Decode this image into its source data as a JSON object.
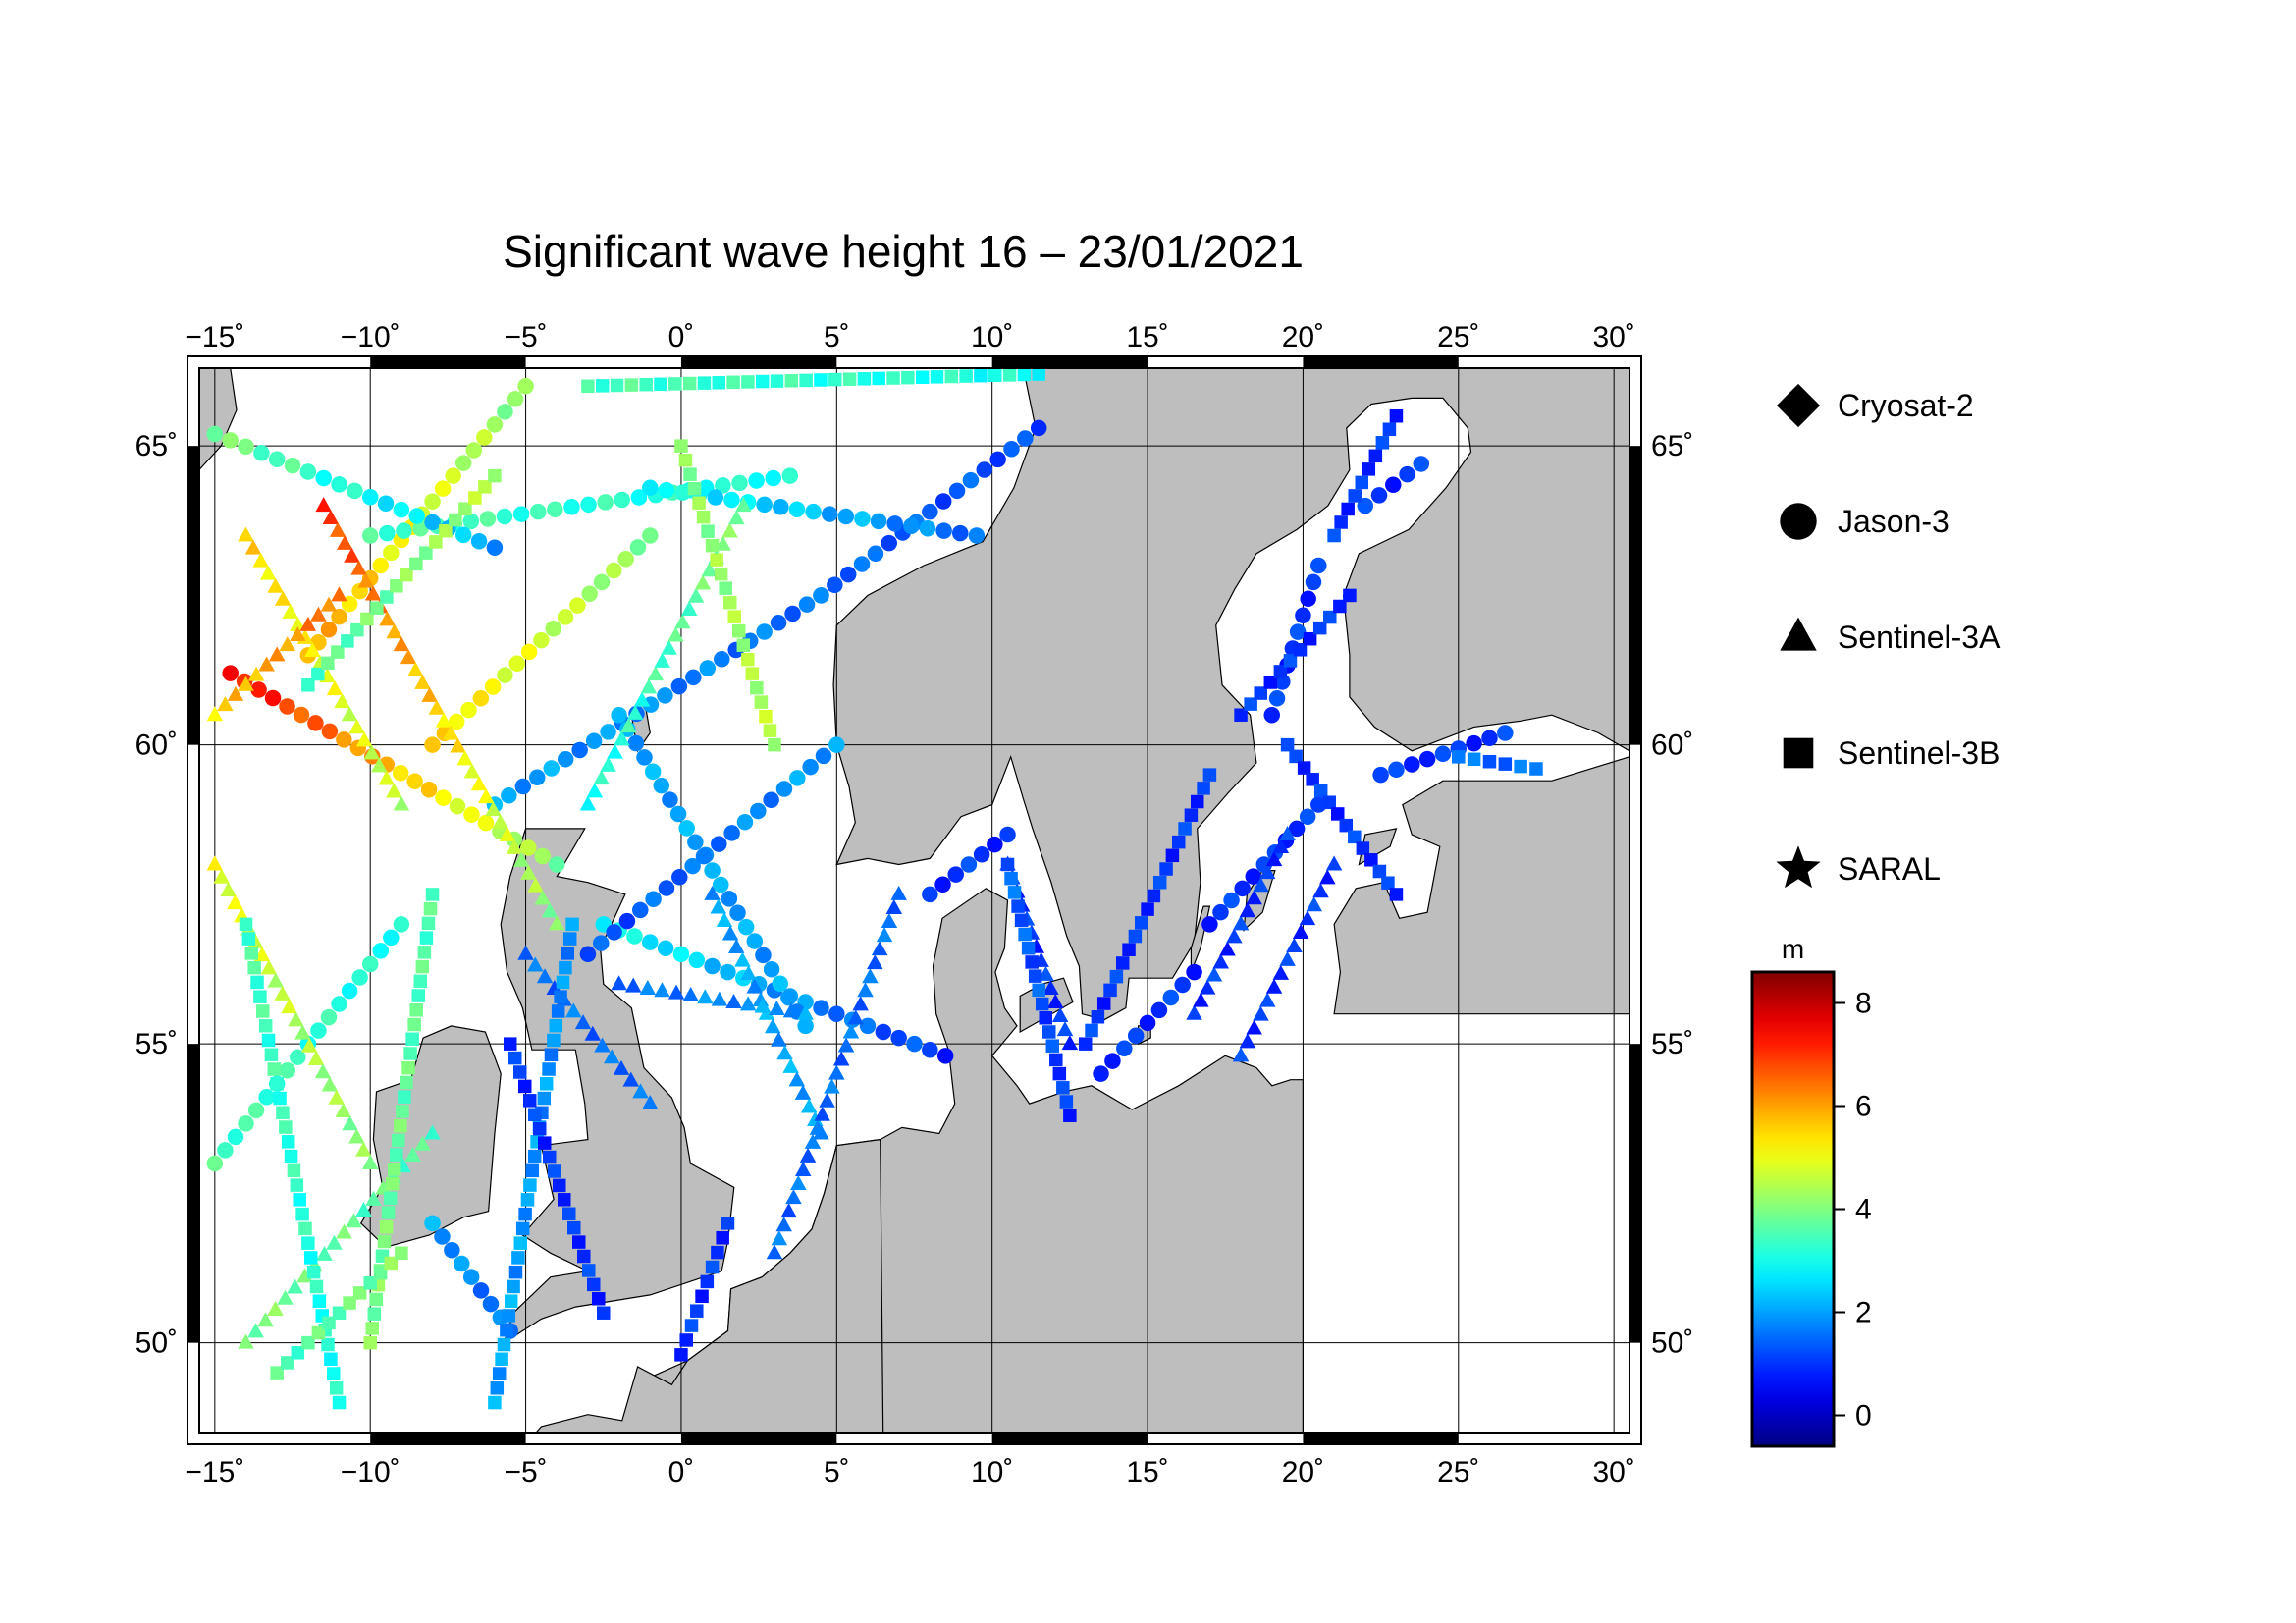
{
  "title": "Significant wave height 16 – 23/01/2021",
  "map": {
    "lon_range": [
      -15.5,
      30.5
    ],
    "lat_range": [
      48.5,
      66.3
    ],
    "lon_ticks": [
      -15,
      -10,
      -5,
      0,
      5,
      10,
      15,
      20,
      25,
      30
    ],
    "lat_ticks": [
      50,
      55,
      60,
      65
    ],
    "lon_tick_labels": [
      "−15˚",
      "−10˚",
      "−5˚",
      "0˚",
      "5˚",
      "10˚",
      "15˚",
      "20˚",
      "25˚",
      "30˚"
    ],
    "lat_tick_labels": [
      "50˚",
      "55˚",
      "60˚",
      "65˚"
    ],
    "grid": true,
    "land_color": "#bebebe",
    "sea_color": "#ffffff"
  },
  "legend": {
    "placement": "right",
    "items": [
      {
        "name": "Cryosat-2",
        "marker": "diamond"
      },
      {
        "name": "Jason-3",
        "marker": "circle"
      },
      {
        "name": "Sentinel-3A",
        "marker": "triangle"
      },
      {
        "name": "Sentinel-3B",
        "marker": "square"
      },
      {
        "name": "SARAL",
        "marker": "star"
      }
    ]
  },
  "colorbar": {
    "unit": "m",
    "min": -0.6,
    "max": 8.6,
    "ticks": [
      0,
      2,
      4,
      6,
      8
    ],
    "tick_labels": [
      "0",
      "2",
      "4",
      "6",
      "8"
    ],
    "colormap": "jet"
  },
  "chart_data": {
    "type": "scatter",
    "variable": "significant wave height (m)",
    "series": [
      {
        "name": "Jason-3",
        "marker": "circle",
        "tracks": [
          {
            "start": [
              -5.5,
              50.2
            ],
            "end": [
              -8.0,
              52.0
            ],
            "hs_start": 1.5,
            "hs_end": 2.0
          },
          {
            "start": [
              -6.0,
              59.0
            ],
            "end": [
              4.5,
              62.5
            ],
            "hs_start": 2.0,
            "hs_end": 1.5
          },
          {
            "start": [
              4.5,
              62.5
            ],
            "end": [
              11.5,
              65.3
            ],
            "hs_start": 1.5,
            "hs_end": 1.2
          },
          {
            "start": [
              -14.5,
              61.2
            ],
            "end": [
              -4.0,
              58.0
            ],
            "hs_start": 7.5,
            "hs_end": 4.0
          },
          {
            "start": [
              -12.0,
              61.5
            ],
            "end": [
              -5.0,
              66.0
            ],
            "hs_start": 6.0,
            "hs_end": 4.0
          },
          {
            "start": [
              -2.5,
              57.0
            ],
            "end": [
              8.5,
              54.8
            ],
            "hs_start": 3.0,
            "hs_end": 1.0
          },
          {
            "start": [
              -3.0,
              56.5
            ],
            "end": [
              5.0,
              60.0
            ],
            "hs_start": 1.2,
            "hs_end": 2.0
          },
          {
            "start": [
              -2.0,
              60.5
            ],
            "end": [
              4.0,
              55.3
            ],
            "hs_start": 2.0,
            "hs_end": 2.0
          },
          {
            "start": [
              -15.0,
              53.0
            ],
            "end": [
              -9.0,
              57.0
            ],
            "hs_start": 3.5,
            "hs_end": 3.0
          },
          {
            "start": [
              8.0,
              57.5
            ],
            "end": [
              10.5,
              58.5
            ],
            "hs_start": 1.0,
            "hs_end": 1.0
          },
          {
            "start": [
              13.5,
              54.5
            ],
            "end": [
              16.5,
              56.2
            ],
            "hs_start": 1.0,
            "hs_end": 1.0
          },
          {
            "start": [
              17.0,
              57.0
            ],
            "end": [
              20.5,
              59.0
            ],
            "hs_start": 1.0,
            "hs_end": 1.0
          },
          {
            "start": [
              19.0,
              60.5
            ],
            "end": [
              20.5,
              63.0
            ],
            "hs_start": 1.0,
            "hs_end": 1.0
          },
          {
            "start": [
              22.5,
              59.5
            ],
            "end": [
              26.5,
              60.2
            ],
            "hs_start": 1.0,
            "hs_end": 1.0
          },
          {
            "start": [
              22.0,
              64.0
            ],
            "end": [
              23.8,
              64.7
            ],
            "hs_start": 1.0,
            "hs_end": 1.0
          },
          {
            "start": [
              -10.0,
              63.5
            ],
            "end": [
              3.5,
              64.5
            ],
            "hs_start": 3.5,
            "hs_end": 3.0
          },
          {
            "start": [
              -1.0,
              63.5
            ],
            "end": [
              -8.0,
              60.0
            ],
            "hs_start": 4.0,
            "hs_end": 5.5
          },
          {
            "start": [
              -1.0,
              64.3
            ],
            "end": [
              9.5,
              63.5
            ],
            "hs_start": 3.0,
            "hs_end": 1.5
          },
          {
            "start": [
              -15.0,
              65.2
            ],
            "end": [
              -6.0,
              63.3
            ],
            "hs_start": 4.0,
            "hs_end": 2.0
          }
        ]
      },
      {
        "name": "Sentinel-3A",
        "marker": "triangle",
        "tracks": [
          {
            "start": [
              -14.0,
              63.5
            ],
            "end": [
              -9.0,
              59.0
            ],
            "hs_start": 5.5,
            "hs_end": 4.5
          },
          {
            "start": [
              -11.5,
              64.0
            ],
            "end": [
              -4.0,
              57.0
            ],
            "hs_start": 7.0,
            "hs_end": 4.0
          },
          {
            "start": [
              -15.0,
              58.0
            ],
            "end": [
              -10.0,
              53.0
            ],
            "hs_start": 5.0,
            "hs_end": 4.0
          },
          {
            "start": [
              -14.0,
              50.0
            ],
            "end": [
              -8.0,
              53.5
            ],
            "hs_start": 4.0,
            "hs_end": 3.5
          },
          {
            "start": [
              -3.0,
              59.0
            ],
            "end": [
              2.0,
              64.0
            ],
            "hs_start": 3.0,
            "hs_end": 4.0
          },
          {
            "start": [
              1.0,
              57.5
            ],
            "end": [
              4.5,
              53.5
            ],
            "hs_start": 2.0,
            "hs_end": 2.0
          },
          {
            "start": [
              3.0,
              51.5
            ],
            "end": [
              7.0,
              57.5
            ],
            "hs_start": 1.5,
            "hs_end": 1.5
          },
          {
            "start": [
              10.5,
              58.0
            ],
            "end": [
              12.5,
              55.0
            ],
            "hs_start": 1.0,
            "hs_end": 1.0
          },
          {
            "start": [
              18.0,
              54.8
            ],
            "end": [
              21.0,
              58.0
            ],
            "hs_start": 1.0,
            "hs_end": 1.0
          },
          {
            "start": [
              16.5,
              55.5
            ],
            "end": [
              19.5,
              58.5
            ],
            "hs_start": 1.0,
            "hs_end": 1.0
          },
          {
            "start": [
              -2.0,
              56.0
            ],
            "end": [
              4.0,
              55.5
            ],
            "hs_start": 1.5,
            "hs_end": 2.0
          },
          {
            "start": [
              -15.0,
              60.5
            ],
            "end": [
              -11.0,
              62.5
            ],
            "hs_start": 5.5,
            "hs_end": 6.5
          },
          {
            "start": [
              -5.0,
              56.5
            ],
            "end": [
              -1.0,
              54.0
            ],
            "hs_start": 1.5,
            "hs_end": 1.5
          }
        ]
      },
      {
        "name": "Sentinel-3B",
        "marker": "square",
        "tracks": [
          {
            "start": [
              -11.0,
              49.0
            ],
            "end": [
              -14.0,
              57.0
            ],
            "hs_start": 3.0,
            "hs_end": 3.5
          },
          {
            "start": [
              -10.0,
              50.0
            ],
            "end": [
              -8.0,
              57.5
            ],
            "hs_start": 4.0,
            "hs_end": 3.5
          },
          {
            "start": [
              -6.0,
              49.0
            ],
            "end": [
              -3.5,
              57.0
            ],
            "hs_start": 2.0,
            "hs_end": 1.8
          },
          {
            "start": [
              -2.5,
              50.5
            ],
            "end": [
              -5.5,
              55.0
            ],
            "hs_start": 1.0,
            "hs_end": 1.0
          },
          {
            "start": [
              0.0,
              49.8
            ],
            "end": [
              1.5,
              52.0
            ],
            "hs_start": 1.0,
            "hs_end": 1.0
          },
          {
            "start": [
              10.5,
              58.0
            ],
            "end": [
              12.5,
              53.8
            ],
            "hs_start": 1.5,
            "hs_end": 1.0
          },
          {
            "start": [
              13.0,
              55.0
            ],
            "end": [
              17.0,
              59.5
            ],
            "hs_start": 1.0,
            "hs_end": 1.0
          },
          {
            "start": [
              19.5,
              60.0
            ],
            "end": [
              23.0,
              57.5
            ],
            "hs_start": 1.0,
            "hs_end": 1.0
          },
          {
            "start": [
              21.0,
              63.5
            ],
            "end": [
              23.0,
              65.5
            ],
            "hs_start": 1.0,
            "hs_end": 1.0
          },
          {
            "start": [
              -3.0,
              66.0
            ],
            "end": [
              11.5,
              66.2
            ],
            "hs_start": 3.5,
            "hs_end": 3.0
          },
          {
            "start": [
              -12.0,
              61.0
            ],
            "end": [
              -6.0,
              64.5
            ],
            "hs_start": 3.5,
            "hs_end": 4.5
          },
          {
            "start": [
              3.0,
              60.0
            ],
            "end": [
              0.0,
              65.0
            ],
            "hs_start": 4.5,
            "hs_end": 4.0
          },
          {
            "start": [
              18.0,
              60.5
            ],
            "end": [
              21.5,
              62.5
            ],
            "hs_start": 1.0,
            "hs_end": 1.0
          },
          {
            "start": [
              25.0,
              59.8
            ],
            "end": [
              27.5,
              59.6
            ],
            "hs_start": 1.5,
            "hs_end": 1.5
          },
          {
            "start": [
              -13.0,
              49.5
            ],
            "end": [
              -9.0,
              51.5
            ],
            "hs_start": 3.5,
            "hs_end": 4.0
          }
        ]
      }
    ]
  }
}
